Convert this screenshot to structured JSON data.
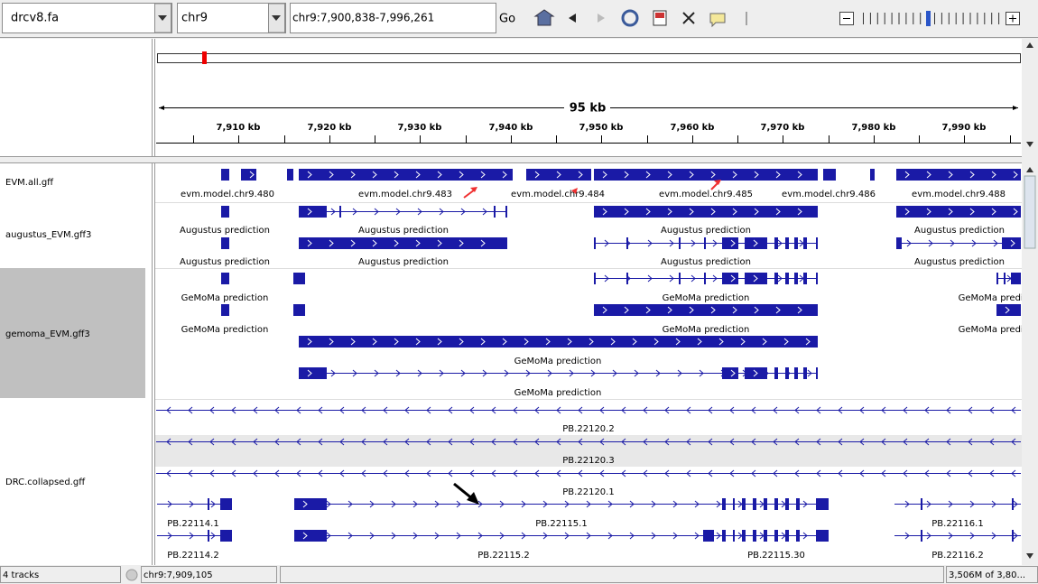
{
  "toolbar": {
    "genome": "drcv8.fa",
    "chromosome": "chr9",
    "locus": "chr9:7,900,838-7,996,261",
    "go_button": "Go"
  },
  "ruler": {
    "span_label": "95 kb",
    "tick_labels": [
      "7,910 kb",
      "7,920 kb",
      "7,930 kb",
      "7,940 kb",
      "7,950 kb",
      "7,960 kb",
      "7,970 kb",
      "7,980 kb",
      "7,990 kb"
    ]
  },
  "tracks": [
    {
      "name": "EVM.all.gff",
      "feature_labels": [
        "evm.model.chr9.480",
        "evm.model.chr9.483",
        "evm.model.chr9.484",
        "evm.model.chr9.485",
        "evm.model.chr9.486",
        "evm.model.chr9.488"
      ]
    },
    {
      "name": "augustus_EVM.gff3",
      "feature_labels": [
        "Augustus prediction",
        "Augustus prediction",
        "Augustus prediction",
        "Augustus prediction",
        "Augustus prediction",
        "Augustus prediction",
        "Augustus prediction",
        "Augustus prediction"
      ]
    },
    {
      "name": "gemoma_EVM.gff3",
      "feature_labels": [
        "GeMoMa prediction",
        "GeMoMa prediction",
        "GeMoMa prediction",
        "GeMoMa prediction",
        "GeMoMa prediction",
        "GeMoMa prediction",
        "GeMoMa prediction",
        "GeMoMa prediction"
      ]
    },
    {
      "name": "DRC.collapsed.gff",
      "feature_labels": [
        "PB.22120.2",
        "PB.22120.3",
        "PB.22120.1",
        "PB.22114.1",
        "PB.22115.1",
        "PB.22116.1",
        "PB.22114.2",
        "PB.22115.2",
        "PB.22115.30",
        "PB.22116.2"
      ]
    }
  ],
  "status_bar": {
    "track_count": "4 tracks",
    "position": "chr9:7,909,105",
    "memory": "3,506M of 3,80..."
  }
}
